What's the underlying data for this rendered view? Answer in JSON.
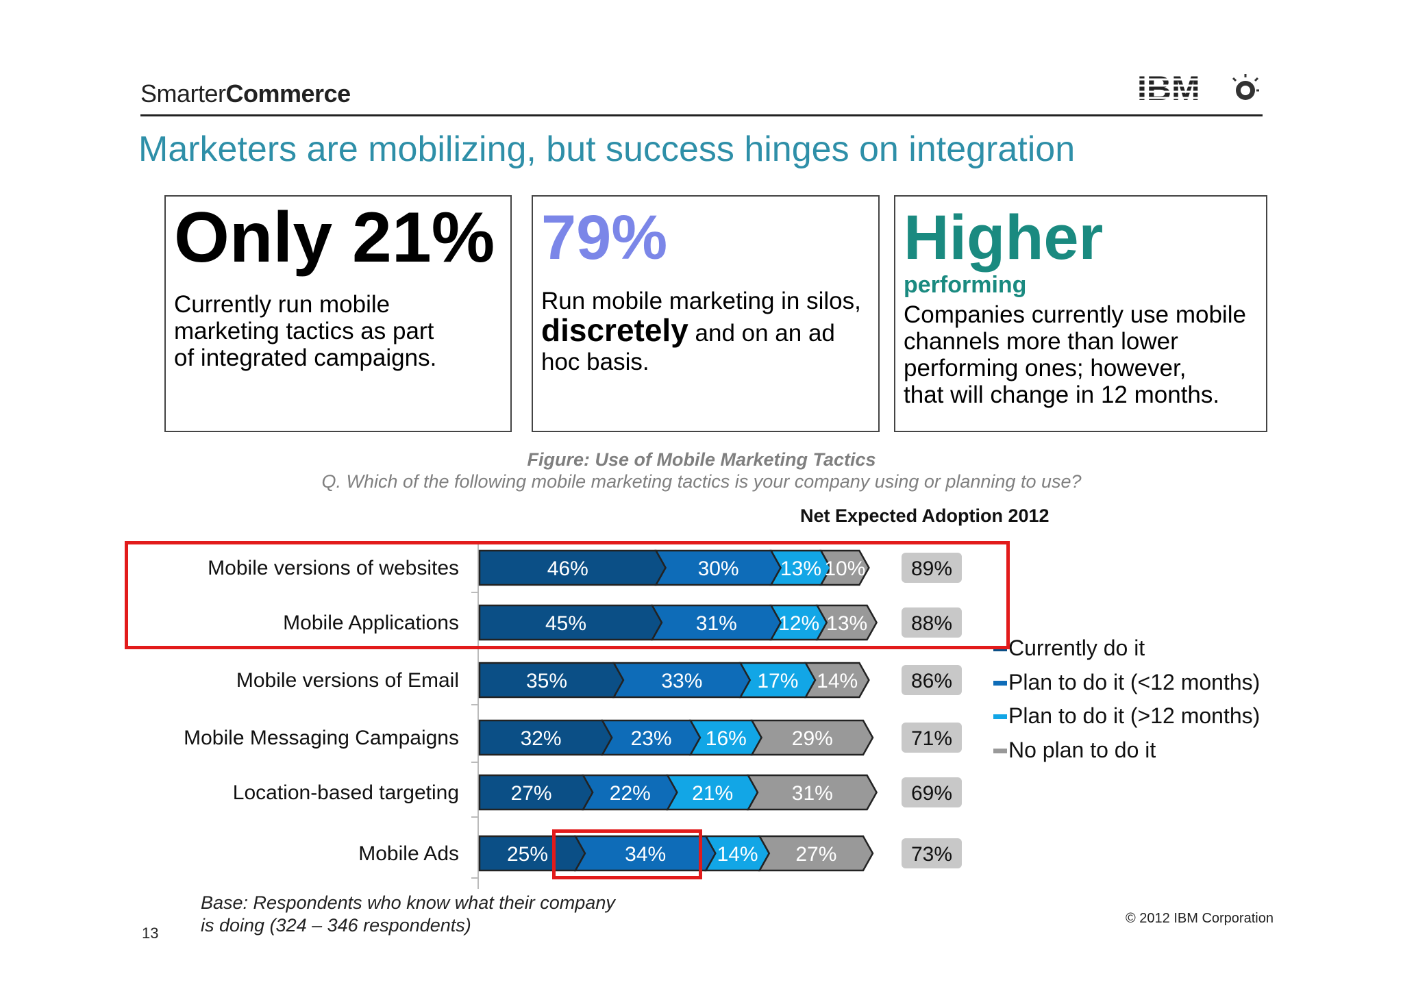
{
  "header": {
    "brand_light": "Smarter",
    "brand_bold": "Commerce",
    "logo": "IBM",
    "title": "Marketers are mobilizing, but success hinges on integration"
  },
  "cards": [
    {
      "headline": "Only 21%",
      "lines": [
        "Currently run mobile",
        "marketing tactics as part",
        "of integrated campaigns."
      ]
    },
    {
      "headline": "79%",
      "body_pre": "Run mobile marketing in silos, ",
      "body_bold": "discretely",
      "body_post": " and on an ad hoc basis."
    },
    {
      "headline": "Higher",
      "subhead": "performing",
      "lines": [
        "Companies currently use mobile",
        "channels more than lower",
        "performing ones; however,",
        "that will change in 12 months."
      ]
    }
  ],
  "colors": {
    "title": "#2e8fa8",
    "card2": "#7b86e8",
    "card3": "#1a8a80",
    "currently": "#0b4f86",
    "plan_lt12": "#0e6cb8",
    "plan_gt12": "#12a6e6",
    "no_plan": "#999999",
    "highlight": "#e21b1b"
  },
  "chart_data": {
    "type": "bar",
    "orientation": "horizontal",
    "stacked": true,
    "title": "Figure: Use of Mobile Marketing Tactics",
    "subtitle": "Q. Which of the following mobile marketing tactics is your company using or planning to use?",
    "categories": [
      "Mobile versions of websites",
      "Mobile Applications",
      "Mobile versions of Email",
      "Mobile Messaging Campaigns",
      "Location-based targeting",
      "Mobile Ads"
    ],
    "series": [
      {
        "name": "Currently do it",
        "values": [
          46,
          45,
          35,
          32,
          27,
          25
        ],
        "labels": [
          "46%",
          "45%",
          "35%",
          "32%",
          "27%",
          "25%"
        ]
      },
      {
        "name": "Plan to do it (<12 months)",
        "values": [
          30,
          31,
          33,
          23,
          22,
          34
        ],
        "labels": [
          "30%",
          "31%",
          "33%",
          "23%",
          "22%",
          "34%"
        ]
      },
      {
        "name": "Plan to do it (>12 months)",
        "values": [
          13,
          12,
          17,
          16,
          21,
          14
        ],
        "labels": [
          "13%",
          "12%",
          "17%",
          "16%",
          "21%",
          "14%"
        ]
      },
      {
        "name": "No plan to do it",
        "values": [
          10,
          13,
          14,
          29,
          31,
          27
        ],
        "labels": [
          "10%",
          "13%",
          "14%",
          "29%",
          "31%",
          "27%"
        ]
      }
    ],
    "net_header": "Net Expected Adoption 2012",
    "net": [
      89,
      88,
      86,
      71,
      69,
      73
    ],
    "net_labels": [
      "89%",
      "88%",
      "86%",
      "71%",
      "69%",
      "73%"
    ],
    "legend_position": "right"
  },
  "footer": {
    "base_line1": "Base: Respondents who know what their company",
    "base_line2": "is doing (324 – 346 respondents)",
    "page": "13",
    "copyright": "© 2012 IBM Corporation"
  }
}
